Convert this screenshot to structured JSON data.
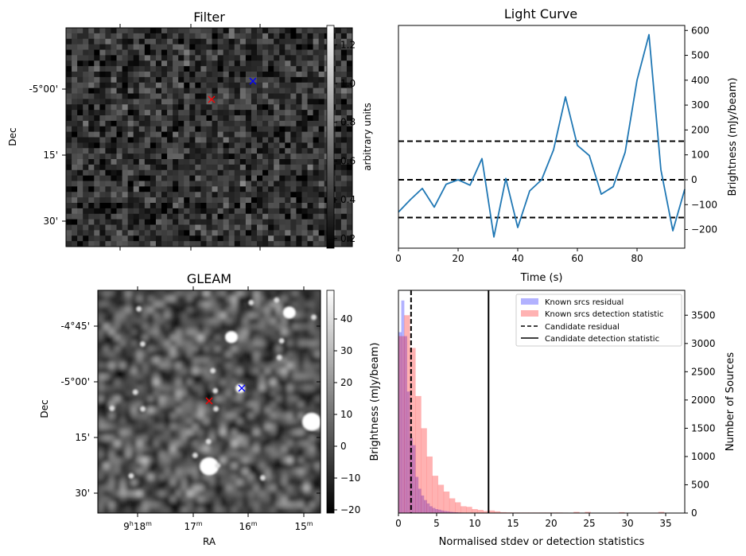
{
  "chart_data": [
    {
      "type": "heatmap",
      "title": "Filter",
      "xlabel": "",
      "ylabel": "Dec",
      "yticks": [
        "-5°00'",
        "15'",
        "30'"
      ],
      "colorbar": {
        "label": "arbitrary units",
        "ticks": [
          "0.2",
          "0.4",
          "0.6",
          "0.8",
          "1.0",
          "1.2"
        ],
        "range": [
          0.15,
          1.3
        ],
        "colormap": "gray"
      },
      "grid_size": [
        51,
        40
      ],
      "markers": [
        {
          "name": "candidate",
          "color": "#ff0000",
          "symbol": "x",
          "position": "center"
        },
        {
          "name": "known-source",
          "color": "#0000ff",
          "symbol": "x",
          "position": "upper-right of center"
        }
      ]
    },
    {
      "type": "line",
      "title": "Light Curve",
      "xlabel": "Time (s)",
      "ylabel": "Brightness (mJy/beam)",
      "y_axis_side": "right",
      "xlim": [
        0,
        96
      ],
      "ylim": [
        -275,
        620
      ],
      "xticks": [
        "0",
        "20",
        "40",
        "60",
        "80"
      ],
      "yticks": [
        "−200",
        "−100",
        "0",
        "100",
        "200",
        "300",
        "400",
        "500",
        "600"
      ],
      "ytick_values": [
        -200,
        -100,
        0,
        100,
        200,
        300,
        400,
        500,
        600
      ],
      "xtick_values": [
        0,
        20,
        40,
        60,
        80
      ],
      "x": [
        0,
        4,
        8,
        12,
        16,
        20,
        24,
        28,
        32,
        36,
        40,
        44,
        48,
        52,
        56,
        60,
        64,
        68,
        72,
        76,
        80,
        84,
        88,
        92,
        96
      ],
      "series": [
        {
          "name": "light-curve",
          "color": "#1f77b4",
          "values": [
            -130,
            -80,
            -35,
            -110,
            -18,
            0,
            -22,
            85,
            -230,
            5,
            -192,
            -45,
            0,
            120,
            333,
            138,
            97,
            -58,
            -28,
            110,
            400,
            583,
            40,
            -205,
            -38
          ]
        }
      ],
      "hlines": [
        {
          "value": 155,
          "style": "dashed",
          "color": "#000000"
        },
        {
          "value": 0,
          "style": "dashed",
          "color": "#000000"
        },
        {
          "value": -152,
          "style": "dashed",
          "color": "#000000"
        }
      ]
    },
    {
      "type": "heatmap",
      "title": "GLEAM",
      "xlabel": "RA",
      "ylabel": "Dec",
      "xticks": [
        {
          "main": "9",
          "sup1": "h",
          "main2": "18",
          "sup2": "m"
        },
        {
          "main": "17",
          "sup1": "m"
        },
        {
          "main": "16",
          "sup1": "m"
        },
        {
          "main": "15",
          "sup1": "m"
        }
      ],
      "yticks": [
        "-4°45'",
        "-5°00'",
        "15'",
        "30'"
      ],
      "colorbar": {
        "label": "Brightness (mJy/beam)",
        "ticks": [
          "−20",
          "−10",
          "0",
          "10",
          "20",
          "30",
          "40"
        ],
        "tick_values": [
          -20,
          -10,
          0,
          10,
          20,
          30,
          40
        ],
        "range": [
          -21,
          49
        ],
        "colormap": "gray"
      },
      "bright_sources": [
        {
          "x": 0.5,
          "y": 0.79,
          "r": "large"
        },
        {
          "x": 0.96,
          "y": 0.59,
          "r": "large"
        },
        {
          "x": 0.86,
          "y": 0.1,
          "r": "medium"
        },
        {
          "x": 0.6,
          "y": 0.21,
          "r": "medium"
        },
        {
          "x": 0.64,
          "y": 0.44,
          "r": "small"
        }
      ],
      "markers": [
        {
          "name": "candidate",
          "color": "#ff0000",
          "symbol": "x"
        },
        {
          "name": "known-source",
          "color": "#0000ff",
          "symbol": "x"
        }
      ]
    },
    {
      "type": "bar",
      "subtype": "histogram",
      "title": "",
      "xlabel": "Normalised stdev or detection statistics",
      "ylabel": "Number of Sources",
      "ylabel_left": "Brightness (mJy/beam)",
      "y_axis_side": "right",
      "xlim": [
        0,
        37.5
      ],
      "ylim": [
        0,
        3940
      ],
      "xticks": [
        "0",
        "5",
        "10",
        "15",
        "20",
        "25",
        "30",
        "35"
      ],
      "xtick_values": [
        0,
        5,
        10,
        15,
        20,
        25,
        30,
        35
      ],
      "yticks": [
        "0",
        "500",
        "1000",
        "1500",
        "2000",
        "2500",
        "3000",
        "3500"
      ],
      "ytick_values": [
        0,
        500,
        1000,
        1500,
        2000,
        2500,
        3000,
        3500
      ],
      "series": [
        {
          "name": "Known srcs residual",
          "color": "#0000ff",
          "alpha": 0.3,
          "bin_width": 0.37,
          "values": [
            3200,
            3760,
            3130,
            2150,
            1330,
            1200,
            640,
            430,
            310,
            230,
            170,
            120,
            90,
            70,
            60,
            45,
            35,
            30,
            22,
            18,
            14,
            10,
            8,
            6,
            5,
            4,
            3,
            3,
            2,
            2
          ]
        },
        {
          "name": "Known srcs detection statistic",
          "color": "#ff0000",
          "alpha": 0.3,
          "bin_width": 0.74,
          "values": [
            3130,
            3500,
            2920,
            2070,
            1500,
            1000,
            660,
            500,
            380,
            260,
            190,
            120,
            110,
            70,
            55,
            35,
            45,
            30,
            15,
            12,
            10,
            10,
            10,
            10,
            10,
            10,
            10,
            10,
            10,
            8,
            0,
            20,
            0,
            20,
            0,
            0,
            0,
            0,
            0,
            15,
            0,
            0,
            0,
            0,
            0,
            0,
            20,
            0,
            0
          ]
        }
      ],
      "vlines": [
        {
          "name": "Candidate residual",
          "value": 1.65,
          "style": "dashed",
          "color": "#000000"
        },
        {
          "name": "Candidate detection statistic",
          "value": 11.8,
          "style": "solid",
          "color": "#000000"
        }
      ],
      "legend": {
        "placement": "top-right",
        "entries": [
          {
            "label": "Known srcs residual",
            "kind": "patch",
            "color": "#b3b3ff"
          },
          {
            "label": "Known srcs detection statistic",
            "kind": "patch",
            "color": "#ffb3b3"
          },
          {
            "label": "Candidate residual",
            "kind": "dashed",
            "color": "#000000"
          },
          {
            "label": "Candidate detection statistic",
            "kind": "solid",
            "color": "#000000"
          }
        ]
      }
    }
  ]
}
